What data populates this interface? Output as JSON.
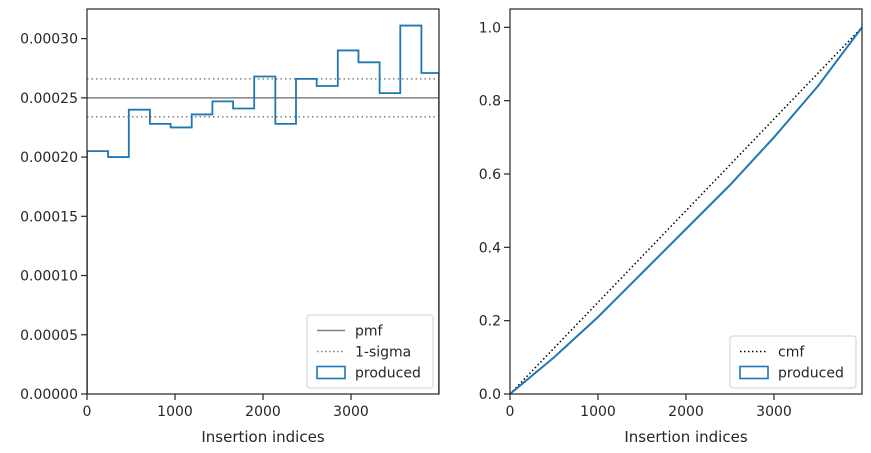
{
  "chart_data": [
    {
      "type": "line",
      "xlabel": "Insertion indices",
      "ylabel": "",
      "xlim": [
        0,
        4000
      ],
      "ylim": [
        0,
        0.000325
      ],
      "x_ticks": [
        0,
        1000,
        2000,
        3000
      ],
      "x_tick_labels": [
        "0",
        "1000",
        "2000",
        "3000"
      ],
      "y_ticks": [
        0,
        5e-05,
        0.0001,
        0.00015,
        0.0002,
        0.00025,
        0.0003
      ],
      "y_tick_labels": [
        "0.00000",
        "0.00005",
        "0.00010",
        "0.00015",
        "0.00020",
        "0.00025",
        "0.00030"
      ],
      "grid": false,
      "legend_position": "lower-right",
      "series": [
        {
          "name": "pmf",
          "kind": "hline",
          "style": "solid",
          "color": "#808080",
          "y": 0.00025
        },
        {
          "name": "1-sigma",
          "kind": "hlines",
          "style": "dotted",
          "color": "#808080",
          "y": [
            0.000234,
            0.000266
          ]
        },
        {
          "name": "produced",
          "kind": "step-histogram",
          "color": "#1f77b4",
          "bin_edges": [
            0,
            240,
            475,
            715,
            950,
            1190,
            1425,
            1660,
            1900,
            2140,
            2375,
            2610,
            2850,
            3085,
            3325,
            3560,
            3800,
            4000
          ],
          "values": [
            0.000205,
            0.0002,
            0.00024,
            0.000228,
            0.000225,
            0.000236,
            0.000247,
            0.000241,
            0.000268,
            0.000228,
            0.000266,
            0.00026,
            0.00029,
            0.00028,
            0.000254,
            0.000311,
            0.000271
          ]
        }
      ]
    },
    {
      "type": "line",
      "xlabel": "Insertion indices",
      "ylabel": "",
      "xlim": [
        0,
        4000
      ],
      "ylim": [
        0,
        1.05
      ],
      "x_ticks": [
        0,
        1000,
        2000,
        3000
      ],
      "x_tick_labels": [
        "0",
        "1000",
        "2000",
        "3000"
      ],
      "y_ticks": [
        0,
        0.2,
        0.4,
        0.6,
        0.8,
        1.0
      ],
      "y_tick_labels": [
        "0.0",
        "0.2",
        "0.4",
        "0.6",
        "0.8",
        "1.0"
      ],
      "grid": false,
      "legend_position": "lower-right",
      "series": [
        {
          "name": "cmf",
          "style": "dotted",
          "color": "#000000",
          "x": [
            0,
            4000
          ],
          "y": [
            0,
            1
          ]
        },
        {
          "name": "produced",
          "style": "solid",
          "color": "#1f77b4",
          "x": [
            0,
            500,
            1000,
            1500,
            2000,
            2500,
            3000,
            3500,
            4000
          ],
          "y": [
            0,
            0.1,
            0.21,
            0.33,
            0.45,
            0.57,
            0.7,
            0.84,
            1.0
          ]
        }
      ]
    }
  ]
}
